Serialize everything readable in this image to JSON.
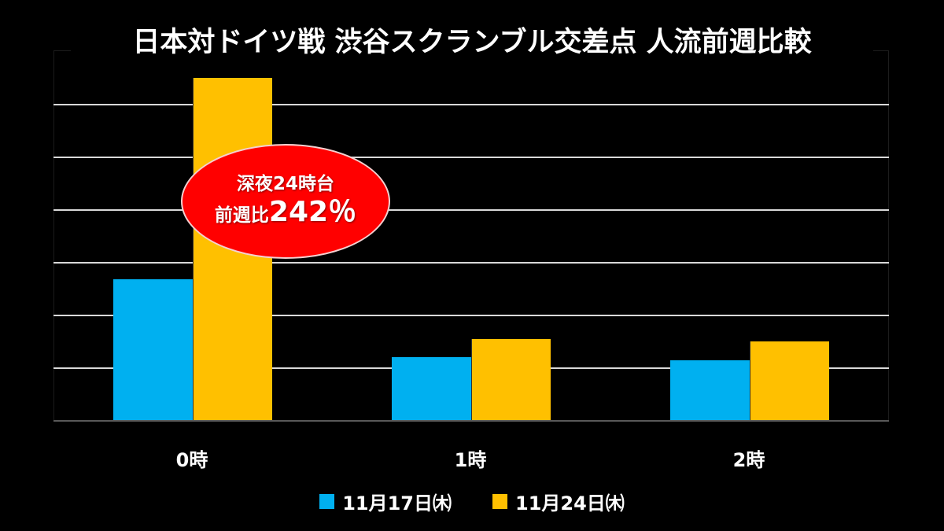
{
  "title": "日本対ドイツ戦 渋谷スクランブル交差点 人流前週比較",
  "callout": {
    "line1": "深夜24時台",
    "line2_prefix": "前週比",
    "line2_value": "242％"
  },
  "colors": {
    "background": "#000000",
    "series_1": "#00b0f0",
    "series_2": "#ffc000",
    "callout": "#ff0000",
    "gridline": "#d9d9d9"
  },
  "legend": [
    {
      "label": "11月17日㈭",
      "color": "#00b0f0"
    },
    {
      "label": "11月24日㈭",
      "color": "#ffc000"
    }
  ],
  "categories": [
    "0時",
    "1時",
    "2時"
  ],
  "chart_data": {
    "type": "bar",
    "title": "日本対ドイツ戦 渋谷スクランブル交差点 人流前週比較",
    "xlabel": "",
    "ylabel": "",
    "categories": [
      "0時",
      "1時",
      "2時"
    ],
    "series": [
      {
        "name": "11月17日㈭",
        "color": "#00b0f0",
        "values": [
          2.69,
          1.21,
          1.15
        ]
      },
      {
        "name": "11月24日㈭",
        "color": "#ffc000",
        "values": [
          6.51,
          1.55,
          1.51
        ]
      }
    ],
    "ylim": [
      0,
      7
    ],
    "y_units": "relative (gridline units, no axis labels shown)",
    "grid": true,
    "gridlines_count": 6,
    "legend_position": "bottom",
    "annotations": [
      {
        "text": "深夜24時台 前週比242％",
        "target_category": "0時",
        "shape": "red ellipse"
      }
    ]
  }
}
